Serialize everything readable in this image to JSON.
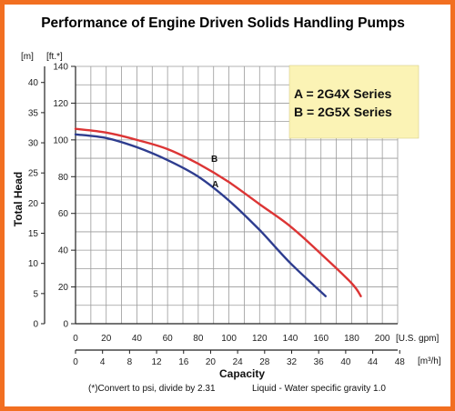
{
  "chart_data": {
    "type": "line",
    "title": "Performance of Engine Driven Solids Handling Pumps",
    "ylabel": "Total Head",
    "xlabel": "Capacity",
    "y_unit_left": "[m]",
    "y_unit_right": "[ft.*]",
    "x_unit_top": "[U.S. gpm]",
    "x_unit_bottom": "[m³/h]",
    "xlim": [
      0,
      210
    ],
    "ylim": [
      0,
      140
    ],
    "x_ticks": [
      0,
      20,
      40,
      60,
      80,
      100,
      120,
      140,
      160,
      180,
      200
    ],
    "y_ticks_ft": [
      0,
      20,
      40,
      60,
      80,
      100,
      120,
      140
    ],
    "y_ticks_m": [
      0,
      5,
      10,
      15,
      20,
      25,
      30,
      35,
      40
    ],
    "x_ticks_m3h": [
      0,
      4,
      8,
      12,
      16,
      20,
      24,
      28,
      32,
      36,
      40,
      44,
      48
    ],
    "grid": true,
    "legend": {
      "position": "top-right",
      "background": "#fbf3b5",
      "lines": [
        "A = 2G4X Series",
        "B = 2G5X Series"
      ]
    },
    "series": [
      {
        "name": "A",
        "color": "#2e3d8f",
        "x": [
          0,
          20,
          40,
          60,
          80,
          100,
          120,
          140,
          163
        ],
        "y": [
          103,
          101,
          96,
          89,
          80,
          67,
          51,
          33,
          15
        ]
      },
      {
        "name": "B",
        "color": "#dc3535",
        "x": [
          0,
          20,
          40,
          60,
          80,
          100,
          120,
          140,
          160,
          180,
          186
        ],
        "y": [
          106,
          104,
          100,
          95,
          87,
          77,
          65,
          53,
          38,
          22,
          15
        ]
      }
    ],
    "footnotes": {
      "left": "(*)Convert to psi, divide by 2.31",
      "right": "Liquid - Water specific gravity 1.0"
    }
  },
  "colors": {
    "border": "#f26f21",
    "grid": "#9a9a9a",
    "axis": "#222222"
  }
}
